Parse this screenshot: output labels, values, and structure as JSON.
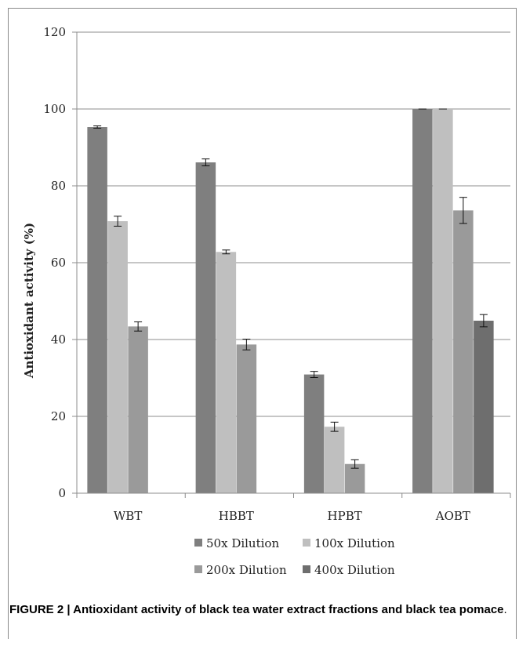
{
  "figure": {
    "caption_bold": "FIGURE 2 | Antioxidant activity of black tea water extract fractions and black tea pomace",
    "caption_end": "."
  },
  "chart_data": {
    "type": "bar",
    "title": "",
    "xlabel": "",
    "ylabel": "Antioxidant activity (%)",
    "ylim": [
      0,
      120
    ],
    "yticks": [
      0,
      20,
      40,
      60,
      80,
      100,
      120
    ],
    "grid": true,
    "legend_position": "bottom",
    "categories": [
      "WBT",
      "HBBT",
      "HPBT",
      "AOBT"
    ],
    "series": [
      {
        "name": "50x Dilution",
        "color": "#7f7f7f",
        "values": [
          95.3,
          86.1,
          30.9,
          100
        ],
        "errors": [
          0.3,
          0.9,
          0.8,
          0.0
        ]
      },
      {
        "name": "100x Dilution",
        "color": "#bfbfbf",
        "values": [
          70.8,
          62.8,
          17.3,
          100
        ],
        "errors": [
          1.3,
          0.5,
          1.2,
          0.0
        ]
      },
      {
        "name": "200x Dilution",
        "color": "#9a9a9a",
        "values": [
          43.4,
          38.7,
          7.6,
          73.6
        ],
        "errors": [
          1.2,
          1.4,
          1.1,
          3.4
        ]
      },
      {
        "name": "400x Dilution",
        "color": "#6e6e6e",
        "values": [
          0,
          0,
          0,
          44.9
        ],
        "errors": [
          0,
          0,
          0,
          1.6
        ]
      }
    ]
  }
}
